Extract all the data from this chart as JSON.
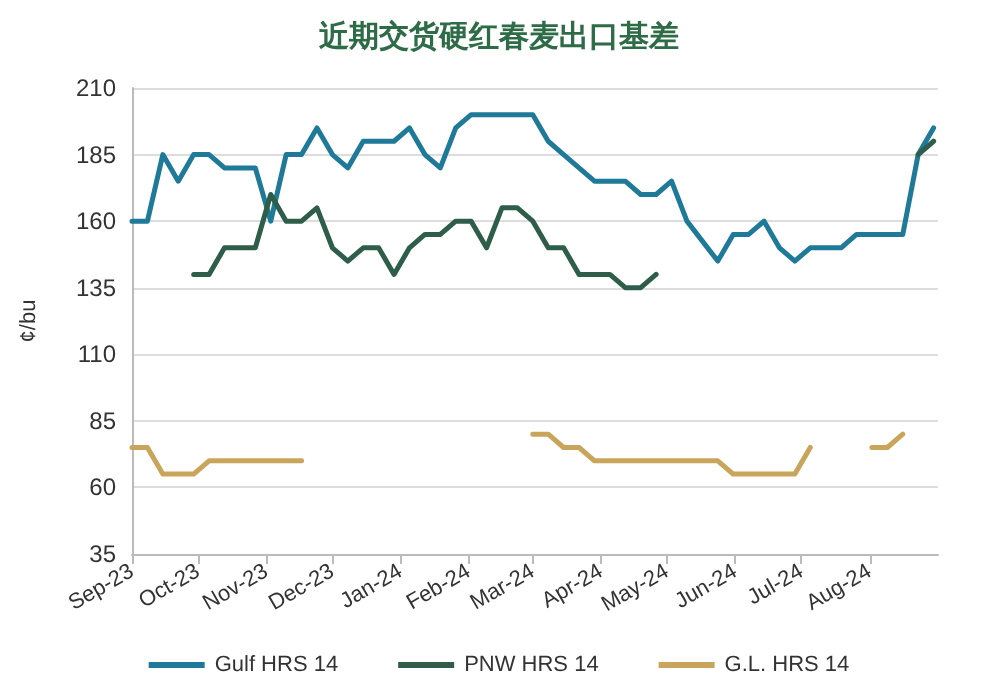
{
  "chart_data": {
    "type": "line",
    "title": "近期交货硬红春麦出口基差",
    "ylabel": "¢/bu",
    "xlim": [
      "2023-09-01",
      "2024-09-01"
    ],
    "xticks": [
      {
        "value": "2023-09-01",
        "label": "Sep-23"
      },
      {
        "value": "2023-10-01",
        "label": "Oct-23"
      },
      {
        "value": "2023-11-01",
        "label": "Nov-23"
      },
      {
        "value": "2023-12-01",
        "label": "Dec-23"
      },
      {
        "value": "2024-01-01",
        "label": "Jan-24"
      },
      {
        "value": "2024-02-01",
        "label": "Feb-24"
      },
      {
        "value": "2024-03-01",
        "label": "Mar-24"
      },
      {
        "value": "2024-04-01",
        "label": "Apr-24"
      },
      {
        "value": "2024-05-01",
        "label": "May-24"
      },
      {
        "value": "2024-06-01",
        "label": "Jun-24"
      },
      {
        "value": "2024-07-01",
        "label": "Jul-24"
      },
      {
        "value": "2024-08-01",
        "label": "Aug-24"
      }
    ],
    "ylim": [
      35,
      210
    ],
    "yticks": [
      35,
      60,
      85,
      110,
      135,
      160,
      185,
      210
    ],
    "grid": "y",
    "legend": "bottom",
    "marker": "none",
    "line_style": "solid",
    "series": [
      {
        "name": "Gulf HRS 14",
        "color": "#1f7a99",
        "x": [
          "2023-09-01",
          "2023-09-08",
          "2023-09-15",
          "2023-09-22",
          "2023-09-29",
          "2023-10-06",
          "2023-10-13",
          "2023-10-27",
          "2023-11-03",
          "2023-11-10",
          "2023-11-17",
          "2023-11-24",
          "2023-12-01",
          "2023-12-08",
          "2023-12-15",
          "2023-12-29",
          "2024-01-05",
          "2024-01-12",
          "2024-01-19",
          "2024-01-26",
          "2024-02-02",
          "2024-02-09",
          "2024-02-16",
          "2024-02-23",
          "2024-03-01",
          "2024-03-08",
          "2024-03-15",
          "2024-03-29",
          "2024-04-12",
          "2024-04-19",
          "2024-04-26",
          "2024-05-03",
          "2024-05-10",
          "2024-05-24",
          "2024-05-31",
          "2024-06-07",
          "2024-06-14",
          "2024-06-21",
          "2024-06-28",
          "2024-07-05",
          "2024-07-19",
          "2024-07-26",
          "2024-08-16",
          "2024-08-23",
          "2024-08-30"
        ],
        "values": [
          160,
          160,
          185,
          175,
          185,
          185,
          180,
          180,
          160,
          185,
          185,
          195,
          185,
          180,
          190,
          190,
          195,
          185,
          180,
          195,
          200,
          200,
          200,
          200,
          200,
          190,
          185,
          175,
          175,
          170,
          170,
          175,
          160,
          145,
          155,
          155,
          160,
          150,
          145,
          150,
          150,
          155,
          155,
          185,
          195
        ]
      },
      {
        "name": "PNW HRS 14",
        "color": "#2e5e4a",
        "x": [
          "2023-09-29",
          "2023-10-06",
          "2023-10-13",
          "2023-10-27",
          "2023-11-03",
          "2023-11-10",
          "2023-11-17",
          "2023-11-24",
          "2023-12-01",
          "2023-12-08",
          "2023-12-15",
          "2023-12-22",
          "2023-12-29",
          "2024-01-05",
          "2024-01-12",
          "2024-01-19",
          "2024-01-26",
          "2024-02-02",
          "2024-02-09",
          "2024-02-16",
          "2024-02-23",
          "2024-03-01",
          "2024-03-08",
          "2024-03-15",
          "2024-03-22",
          "2024-04-05",
          "2024-04-12",
          "2024-04-19",
          "2024-04-26",
          "2024-05-03",
          "2024-08-23",
          "2024-08-30"
        ],
        "values": [
          140,
          140,
          150,
          150,
          170,
          160,
          160,
          165,
          150,
          145,
          150,
          150,
          140,
          150,
          155,
          155,
          160,
          160,
          150,
          165,
          165,
          160,
          150,
          150,
          140,
          140,
          135,
          135,
          140,
          null,
          185,
          190
        ]
      },
      {
        "name": "G.L. HRS 14",
        "color": "#c9a55c",
        "x": [
          "2023-09-01",
          "2023-09-08",
          "2023-09-15",
          "2023-09-29",
          "2023-10-06",
          "2023-11-17",
          "2023-11-24",
          "2024-03-01",
          "2024-03-08",
          "2024-03-15",
          "2024-03-22",
          "2024-03-29",
          "2024-05-24",
          "2024-05-31",
          "2024-06-28",
          "2024-07-05",
          "2024-07-12",
          "2024-08-02",
          "2024-08-09",
          "2024-08-16"
        ],
        "values": [
          75,
          75,
          65,
          65,
          70,
          70,
          null,
          80,
          80,
          75,
          75,
          70,
          70,
          65,
          65,
          75,
          null,
          75,
          75,
          80
        ]
      }
    ]
  }
}
